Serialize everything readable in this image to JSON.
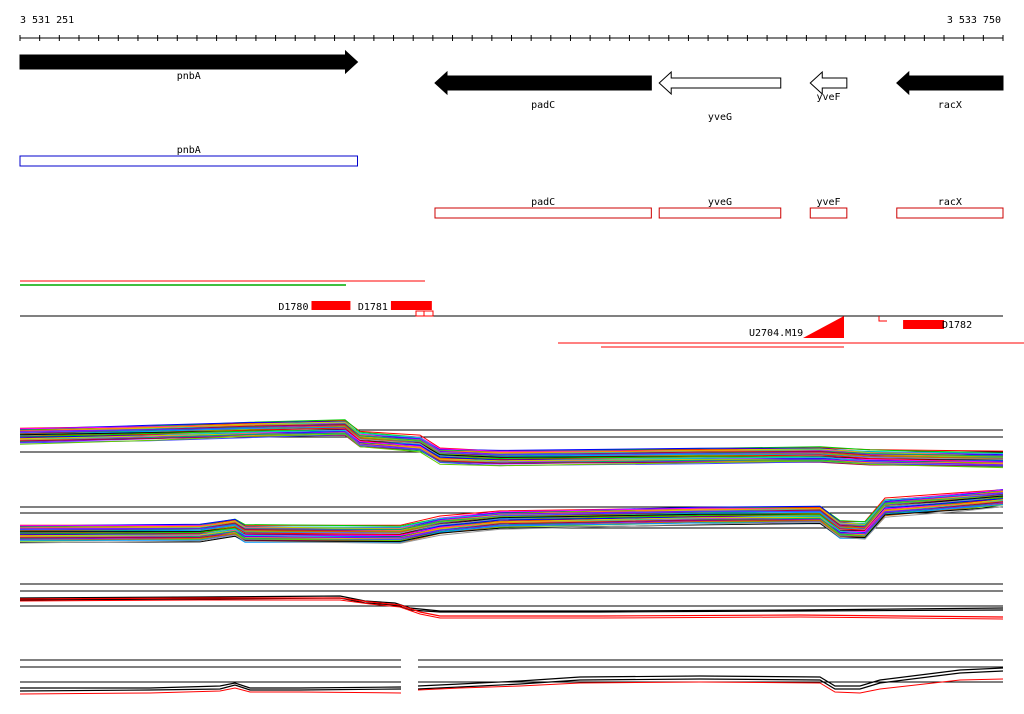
{
  "ruler": {
    "start_label": "3 531 251",
    "end_label": "3 533 750",
    "start_bp": 3531251,
    "end_bp": 3533750
  },
  "genes": [
    {
      "name": "pnbA",
      "strand": "+",
      "filled": true,
      "start_bp": 3531251,
      "end_bp": 3532109
    },
    {
      "name": "padC",
      "strand": "-",
      "filled": true,
      "start_bp": 3532306,
      "end_bp": 3532856
    },
    {
      "name": "yveG",
      "strand": "-",
      "filled": false,
      "start_bp": 3532876,
      "end_bp": 3533185
    },
    {
      "name": "yveF",
      "strand": "-",
      "filled": false,
      "start_bp": 3533260,
      "end_bp": 3533353
    },
    {
      "name": "racX",
      "strand": "-",
      "filled": true,
      "start_bp": 3533480,
      "end_bp": 3533750
    }
  ],
  "annotation_boxes": [
    {
      "name": "pnbA",
      "color": "#0000cc",
      "start_bp": 3531251,
      "end_bp": 3532109
    },
    {
      "name": "padC",
      "color": "#cc0000",
      "start_bp": 3532306,
      "end_bp": 3532856
    },
    {
      "name": "yveG",
      "color": "#cc0000",
      "start_bp": 3532876,
      "end_bp": 3533185
    },
    {
      "name": "yveF",
      "color": "#cc0000",
      "start_bp": 3533260,
      "end_bp": 3533353
    },
    {
      "name": "racX",
      "color": "#cc0000",
      "start_bp": 3533480,
      "end_bp": 3533750
    }
  ],
  "features": [
    {
      "label": "D1780",
      "start_bp": 3531992,
      "end_bp": 3532091
    },
    {
      "label": "D1781",
      "start_bp": 3532194,
      "end_bp": 3532298
    },
    {
      "label": "D1782",
      "start_bp": 3533496,
      "end_bp": 3533600
    }
  ],
  "marker": {
    "label": "U2704.M19"
  },
  "colors": {
    "gene_fill": "#000000",
    "accent_red": "#ff0000",
    "blue": "#0000cc",
    "green": "#00aa00"
  }
}
